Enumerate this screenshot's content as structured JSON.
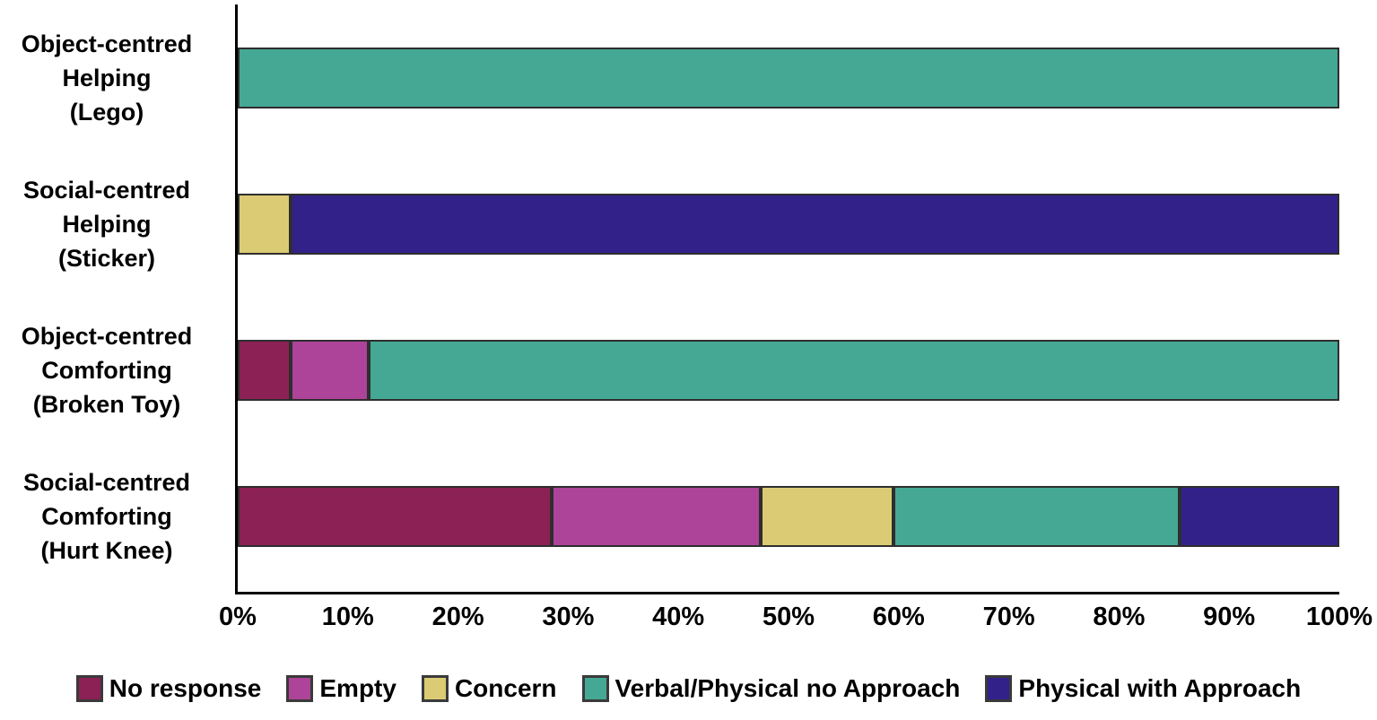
{
  "chart_data": {
    "type": "bar",
    "orientation": "horizontal",
    "stacked": true,
    "title": "",
    "xlabel": "",
    "ylabel": "",
    "xlim": [
      0,
      100
    ],
    "unit": "%",
    "grid": false,
    "legend_position": "bottom",
    "x_ticks": [
      "0%",
      "10%",
      "20%",
      "30%",
      "40%",
      "50%",
      "60%",
      "70%",
      "80%",
      "90%",
      "100%"
    ],
    "x_tick_values": [
      0,
      10,
      20,
      30,
      40,
      50,
      60,
      70,
      80,
      90,
      100
    ],
    "categories": [
      "Object-centred Helping (Lego)",
      "Social-centred Helping (Sticker)",
      "Object-centred Comforting (Broken Toy)",
      "Social-centred Comforting (Hurt Knee)"
    ],
    "category_display_lines": [
      [
        "Object-centred",
        "Helping",
        "(Lego)"
      ],
      [
        "Social-centred",
        "Helping",
        "(Sticker)"
      ],
      [
        "Object-centred",
        "Comforting",
        "(Broken Toy)"
      ],
      [
        "Social-centred",
        "Comforting",
        "(Hurt Knee)"
      ]
    ],
    "series": [
      {
        "name": "No response",
        "color": "#8C2155",
        "values": [
          0,
          0,
          4.8,
          28.5
        ]
      },
      {
        "name": "Empty",
        "color": "#AD4499",
        "values": [
          0,
          0,
          7.1,
          19.0
        ]
      },
      {
        "name": "Concern",
        "color": "#DBCB74",
        "values": [
          0,
          4.8,
          0,
          12.0
        ]
      },
      {
        "name": "Verbal/Physical no Approach",
        "color": "#45A894",
        "values": [
          100,
          0,
          88.1,
          26.0
        ]
      },
      {
        "name": "Physical with Approach",
        "color": "#33218A",
        "values": [
          0,
          95.2,
          0,
          14.5
        ]
      }
    ],
    "axis_color": "#000000",
    "segment_border_color": "#2e2e2e"
  }
}
